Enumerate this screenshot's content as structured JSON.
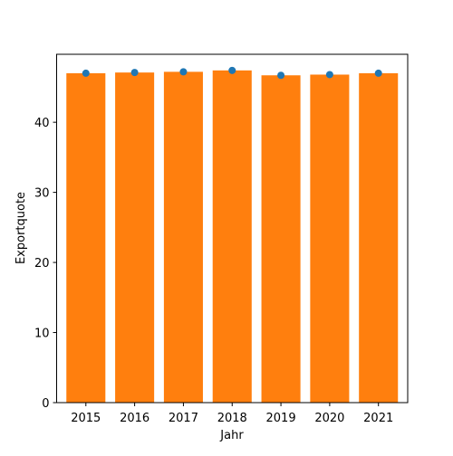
{
  "chart_data": {
    "type": "bar",
    "title": "",
    "xlabel": "Jahr",
    "ylabel": "Exportquote",
    "categories": [
      "2015",
      "2016",
      "2017",
      "2018",
      "2019",
      "2020",
      "2021"
    ],
    "series": [
      {
        "type": "bar",
        "values": [
          47.0,
          47.1,
          47.2,
          47.4,
          46.7,
          46.8,
          47.0
        ],
        "color": "#ff7f0e"
      },
      {
        "type": "scatter",
        "values": [
          47.0,
          47.1,
          47.2,
          47.4,
          46.7,
          46.8,
          47.0
        ],
        "color": "#1f77b4"
      }
    ],
    "ylim": [
      0,
      49.7
    ],
    "yticks": [
      0,
      10,
      20,
      30,
      40
    ],
    "grid": false,
    "legend": "none"
  }
}
